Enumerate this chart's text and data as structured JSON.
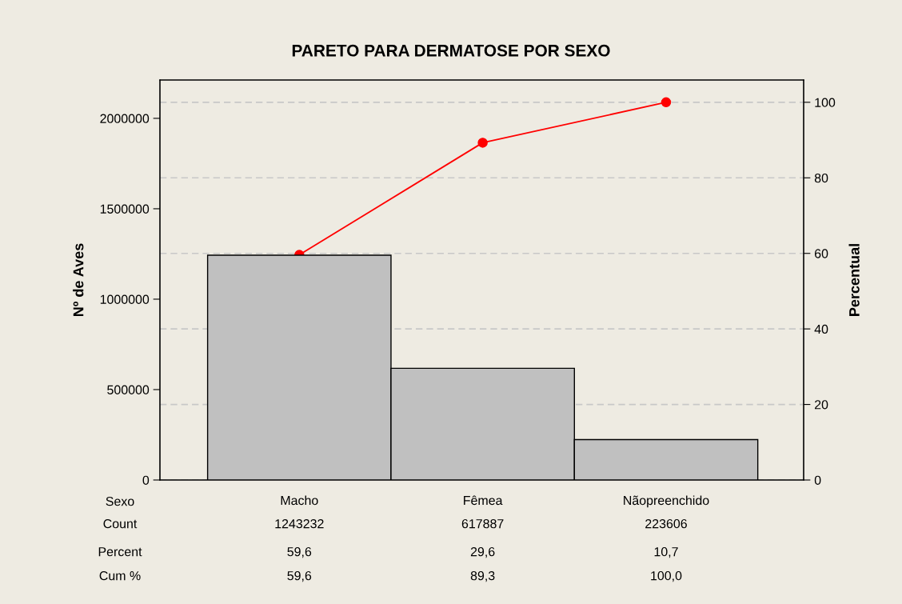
{
  "chart_data": {
    "type": "bar",
    "title": "PARETO PARA DERMATOSE POR SEXO",
    "xlabel": "Sexo",
    "ylabel": "Nº de Aves",
    "y2label": "Percentual",
    "categories": [
      "Macho",
      "Fêmea",
      "Nãopreenchido"
    ],
    "series": [
      {
        "color": "#c0c0c0",
        "values": [
          1243232,
          617887,
          223606
        ],
        "value_labels": [
          "1243232",
          "617887",
          "223606"
        ]
      },
      {
        "type": "line",
        "axis": "y2",
        "color": "#ff0000",
        "marker": "circle",
        "line_style": "solid",
        "values": [
          59.6,
          89.3,
          100.0
        ],
        "value_labels": [
          "59,6",
          "89,3",
          "100,0"
        ]
      }
    ],
    "ylim": [
      0,
      2212000
    ],
    "yticks": [
      0,
      500000,
      1000000,
      1500000,
      2000000
    ],
    "y2lim": [
      0,
      105.9
    ],
    "y2ticks": [
      0,
      20,
      40,
      60,
      80,
      100
    ],
    "grid": "y2",
    "legend": false,
    "annotations": [
      "Count",
      "Percent",
      "Cum %",
      "59,6",
      "29,6",
      "10,7"
    ]
  }
}
